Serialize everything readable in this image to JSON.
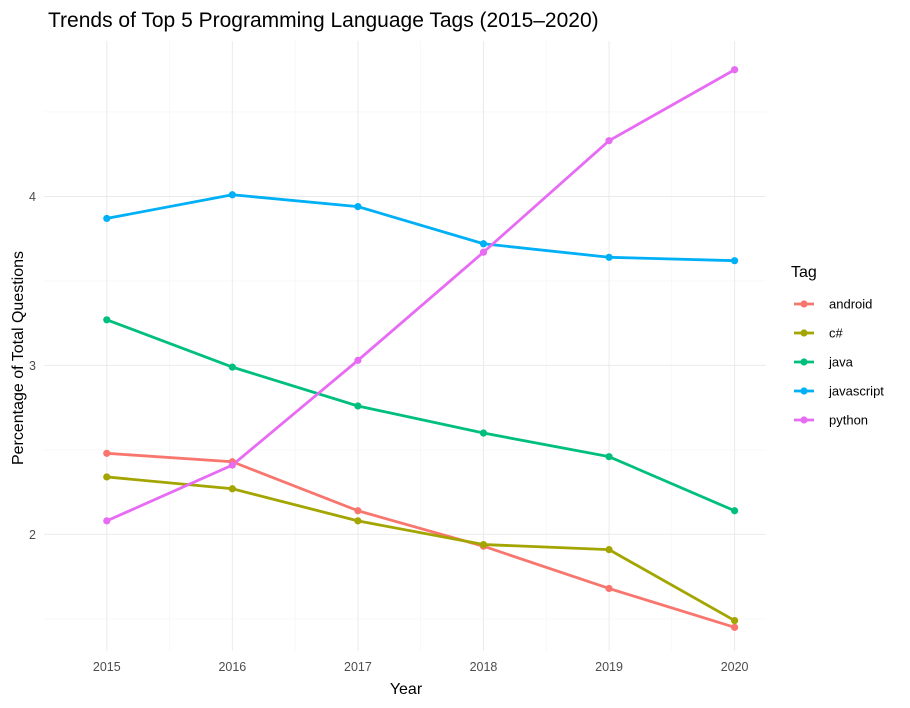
{
  "chart_data": {
    "type": "line",
    "title": "Trends of Top 5 Programming Language Tags (2015–2020)",
    "xlabel": "Year",
    "ylabel": "Percentage of Total Questions",
    "x": [
      2015,
      2016,
      2017,
      2018,
      2019,
      2020
    ],
    "x_ticks": [
      "2015",
      "2016",
      "2017",
      "2018",
      "2019",
      "2020"
    ],
    "y_ticks": [
      "2",
      "3",
      "4"
    ],
    "ylim": [
      1.31,
      4.92
    ],
    "legend_title": "Tag",
    "legend_position": "right",
    "grid": true,
    "series": [
      {
        "name": "android",
        "color": "#F8766D",
        "values": [
          2.48,
          2.43,
          2.14,
          1.93,
          1.68,
          1.45
        ]
      },
      {
        "name": "c#",
        "color": "#A3A500",
        "values": [
          2.34,
          2.27,
          2.08,
          1.94,
          1.91,
          1.49
        ]
      },
      {
        "name": "java",
        "color": "#00BF7D",
        "values": [
          3.27,
          2.99,
          2.76,
          2.6,
          2.46,
          2.14
        ]
      },
      {
        "name": "javascript",
        "color": "#00B0F6",
        "values": [
          3.87,
          4.01,
          3.94,
          3.72,
          3.64,
          3.62
        ]
      },
      {
        "name": "python",
        "color": "#E76BF3",
        "values": [
          2.08,
          2.41,
          3.03,
          3.67,
          4.33,
          4.75
        ]
      }
    ]
  }
}
